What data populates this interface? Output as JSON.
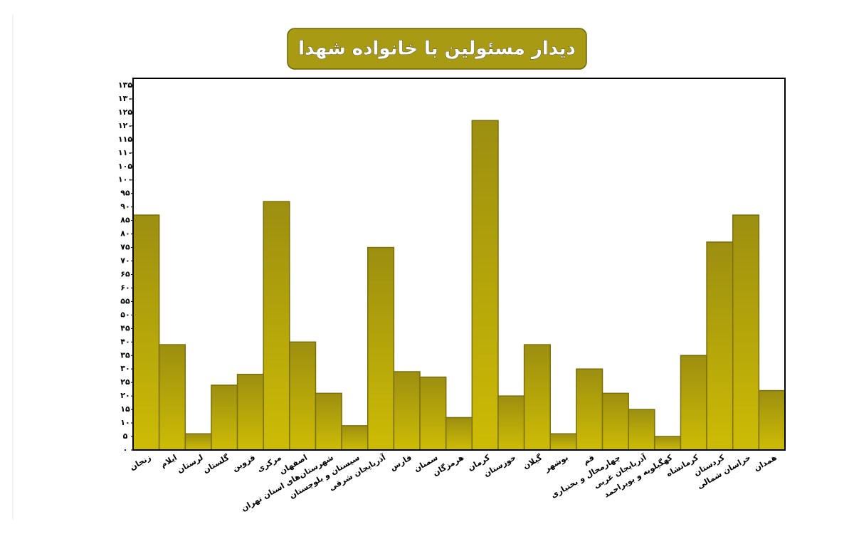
{
  "chart_data": {
    "type": "bar",
    "title": "دیدار مسئولین با خانواده شهدا",
    "categories": [
      "زنجان",
      "ایلام",
      "لرستان",
      "گلستان",
      "قزوین",
      "مرکزی",
      "اصفهان",
      "شهرستان‌های استان تهران",
      "سیستان و بلوچستان",
      "آذربایجان شرقی",
      "فارس",
      "سمنان",
      "هرمزگان",
      "کرمان",
      "خوزستان",
      "گیلان",
      "بوشهر",
      "قم",
      "چهارمحال و بختیاری",
      "آذربایجان غربی",
      "کهگیلویه و بویراحمد",
      "کرمانشاه",
      "کردستان",
      "خراسان شمالی",
      "همدان"
    ],
    "values": [
      87,
      39,
      6,
      24,
      28,
      92,
      40,
      21,
      9,
      75,
      29,
      27,
      12,
      122,
      20,
      39,
      6,
      30,
      21,
      15,
      5,
      35,
      77,
      87,
      22
    ],
    "color": "#bfae08",
    "ylim": [
      0,
      135
    ],
    "yticks": [
      {
        "value": 0,
        "label": "۰"
      },
      {
        "value": 5,
        "label": "۵"
      },
      {
        "value": 10,
        "label": "۱۰"
      },
      {
        "value": 15,
        "label": "۱۵"
      },
      {
        "value": 20,
        "label": "۲۰"
      },
      {
        "value": 25,
        "label": "۲۵"
      },
      {
        "value": 30,
        "label": "۳۰"
      },
      {
        "value": 35,
        "label": "۳۵"
      },
      {
        "value": 40,
        "label": "۴۰"
      },
      {
        "value": 45,
        "label": "۴۵"
      },
      {
        "value": 50,
        "label": "۵۰"
      },
      {
        "value": 55,
        "label": "۵۵"
      },
      {
        "value": 60,
        "label": "۶۰"
      },
      {
        "value": 65,
        "label": "۶۵"
      },
      {
        "value": 70,
        "label": "۷۰"
      },
      {
        "value": 75,
        "label": "۷۵"
      },
      {
        "value": 80,
        "label": "۸۰"
      },
      {
        "value": 85,
        "label": "۸۵"
      },
      {
        "value": 90,
        "label": "۹۰"
      },
      {
        "value": 95,
        "label": "۹۵"
      },
      {
        "value": 100,
        "label": "۱۰۰"
      },
      {
        "value": 105,
        "label": "۱۰۵"
      },
      {
        "value": 110,
        "label": "۱۱۰"
      },
      {
        "value": 115,
        "label": "۱۱۵"
      },
      {
        "value": 120,
        "label": "۱۲۰"
      },
      {
        "value": 125,
        "label": "۱۲۵"
      },
      {
        "value": 130,
        "label": "۱۳۰"
      },
      {
        "value": 135,
        "label": "۱۳۵"
      }
    ],
    "grid": false
  }
}
